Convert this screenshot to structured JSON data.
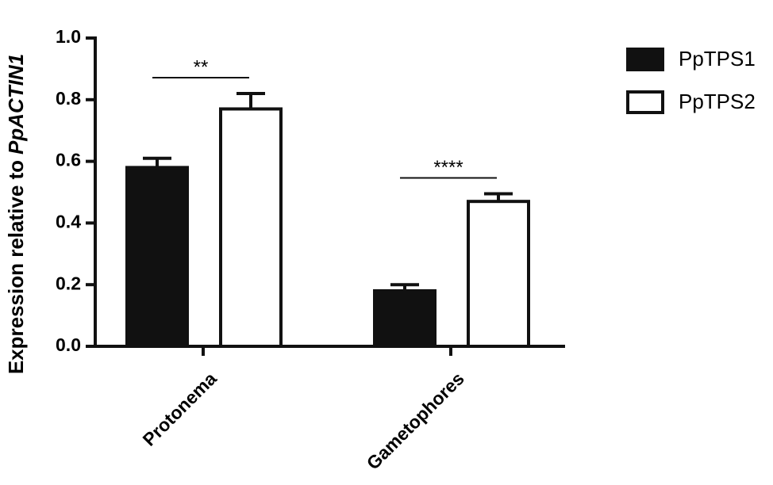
{
  "chart_data": {
    "type": "bar",
    "ylabel": {
      "text": "Expression relative to",
      "italic": "PpACTIN1"
    },
    "categories": [
      "Protonema",
      "Gametophores"
    ],
    "series": [
      {
        "name": "PpTPS1",
        "color": "#111111",
        "values": [
          0.58,
          0.18
        ],
        "errors": [
          0.03,
          0.02
        ]
      },
      {
        "name": "PpTPS2",
        "color": "#ffffff",
        "values": [
          0.77,
          0.47
        ],
        "errors": [
          0.05,
          0.025
        ]
      }
    ],
    "annotations": [
      "**",
      "****"
    ],
    "ylim": [
      0,
      1
    ],
    "yticks": [
      {
        "value": 0,
        "label": "0.0"
      },
      0.2,
      0.4,
      0.6,
      0.8,
      {
        "value": 1,
        "label": "1.0"
      }
    ],
    "legend": "right"
  }
}
